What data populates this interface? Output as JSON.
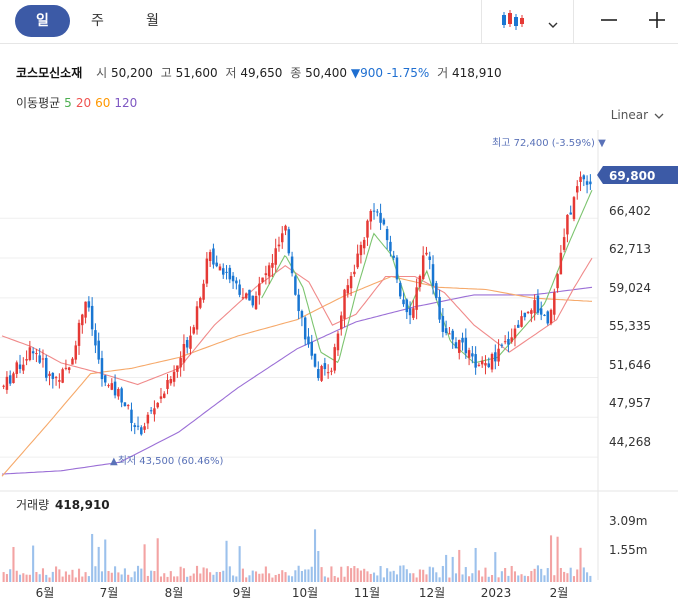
{
  "toolbar": {
    "tabs": [
      {
        "label": "일",
        "active": true
      },
      {
        "label": "주",
        "active": false
      },
      {
        "label": "월",
        "active": false
      }
    ],
    "chart_type_icon": "candlestick-icon",
    "dropdown_icon": "chevron-down-icon",
    "zoom_out_icon": "minus-icon",
    "zoom_in_icon": "plus-icon"
  },
  "quote": {
    "name": "코스모신소재",
    "open_label": "시",
    "open": "50,200",
    "high_label": "고",
    "high": "51,600",
    "low_label": "저",
    "low": "49,650",
    "close_label": "종",
    "close": "50,400",
    "change": "▼900 -1.75%",
    "volume_label": "거",
    "volume": "418,910"
  },
  "ma_legend": {
    "label": "이동평균",
    "periods": [
      {
        "label": "5",
        "color": "#4caf50"
      },
      {
        "label": "20",
        "color": "#ef5350"
      },
      {
        "label": "60",
        "color": "#ff9800"
      },
      {
        "label": "120",
        "color": "#7e57c2"
      }
    ]
  },
  "scale_mode": "Linear",
  "colors": {
    "up": "#e53935",
    "down": "#1976d2",
    "accent": "#3c5aa6"
  },
  "chart_data": [
    {
      "type": "candlestick",
      "x_tick_labels": [
        "6월",
        "7월",
        "8월",
        "9월",
        "10월",
        "11월",
        "12월",
        "2023",
        "2월"
      ],
      "y_tick_labels": [
        "66,402",
        "62,713",
        "59,024",
        "55,335",
        "51,646",
        "47,957",
        "44,268"
      ],
      "ylim": [
        41500,
        75500
      ],
      "current_price_label": "69,800",
      "max_annotation": "최고 72,400 (-3.59%) ▼",
      "min_annotation": "▲최저 43,500 (60.46%)",
      "grid": true,
      "series_anchors": [
        {
          "name": "price",
          "points": [
            [
              0,
              50800
            ],
            [
              0.05,
              54500
            ],
            [
              0.08,
              51500
            ],
            [
              0.11,
              52200
            ],
            [
              0.14,
              59000
            ],
            [
              0.17,
              51000
            ],
            [
              0.2,
              50000
            ],
            [
              0.23,
              46500
            ],
            [
              0.26,
              49200
            ],
            [
              0.29,
              52000
            ],
            [
              0.32,
              56000
            ],
            [
              0.35,
              63000
            ],
            [
              0.38,
              61500
            ],
            [
              0.42,
              58500
            ],
            [
              0.45,
              61500
            ],
            [
              0.48,
              65200
            ],
            [
              0.5,
              59000
            ],
            [
              0.53,
              52000
            ],
            [
              0.56,
              52800
            ],
            [
              0.58,
              59000
            ],
            [
              0.61,
              64000
            ],
            [
              0.63,
              67800
            ],
            [
              0.66,
              63500
            ],
            [
              0.69,
              56500
            ],
            [
              0.72,
              64000
            ],
            [
              0.75,
              55500
            ],
            [
              0.78,
              54500
            ],
            [
              0.81,
              52500
            ],
            [
              0.84,
              53500
            ],
            [
              0.87,
              56000
            ],
            [
              0.9,
              58500
            ],
            [
              0.93,
              57000
            ],
            [
              0.96,
              66000
            ],
            [
              0.985,
              70500
            ],
            [
              1.0,
              69800
            ]
          ]
        },
        {
          "name": "ma120",
          "points": [
            [
              0,
              42700
            ],
            [
              0.1,
              43000
            ],
            [
              0.2,
              43800
            ],
            [
              0.3,
              46600
            ],
            [
              0.4,
              50700
            ],
            [
              0.5,
              54300
            ],
            [
              0.6,
              56800
            ],
            [
              0.7,
              58200
            ],
            [
              0.8,
              59300
            ],
            [
              0.9,
              59300
            ],
            [
              1.0,
              60000
            ]
          ]
        },
        {
          "name": "ma60",
          "points": [
            [
              0,
              42500
            ],
            [
              0.08,
              47500
            ],
            [
              0.15,
              52000
            ],
            [
              0.22,
              52500
            ],
            [
              0.3,
              53500
            ],
            [
              0.4,
              55500
            ],
            [
              0.5,
              57000
            ],
            [
              0.58,
              59200
            ],
            [
              0.66,
              61000
            ],
            [
              0.74,
              60000
            ],
            [
              0.82,
              59800
            ],
            [
              0.9,
              59000
            ],
            [
              1.0,
              58700
            ]
          ]
        },
        {
          "name": "ma20",
          "points": [
            [
              0,
              55500
            ],
            [
              0.05,
              54500
            ],
            [
              0.1,
              53000
            ],
            [
              0.17,
              52000
            ],
            [
              0.23,
              51000
            ],
            [
              0.3,
              52500
            ],
            [
              0.36,
              56500
            ],
            [
              0.43,
              60000
            ],
            [
              0.48,
              62000
            ],
            [
              0.52,
              60500
            ],
            [
              0.56,
              56500
            ],
            [
              0.6,
              57500
            ],
            [
              0.65,
              61000
            ],
            [
              0.7,
              61000
            ],
            [
              0.75,
              59500
            ],
            [
              0.8,
              56500
            ],
            [
              0.86,
              54000
            ],
            [
              0.9,
              55500
            ],
            [
              0.94,
              57000
            ],
            [
              0.97,
              60000
            ],
            [
              1.0,
              62700
            ]
          ]
        },
        {
          "name": "ma5",
          "points": [
            [
              0.44,
              59000
            ],
            [
              0.48,
              63000
            ],
            [
              0.51,
              60000
            ],
            [
              0.54,
              54000
            ],
            [
              0.57,
              53000
            ],
            [
              0.6,
              59500
            ],
            [
              0.63,
              65000
            ],
            [
              0.66,
              63000
            ],
            [
              0.69,
              58000
            ],
            [
              0.72,
              61500
            ],
            [
              0.76,
              55000
            ],
            [
              0.8,
              53000
            ],
            [
              0.84,
              53500
            ],
            [
              0.88,
              56000
            ],
            [
              0.92,
              58500
            ],
            [
              0.96,
              64000
            ],
            [
              1.0,
              69000
            ]
          ]
        }
      ]
    },
    {
      "type": "bar",
      "title": "거래량",
      "title_value": "418,910",
      "y_tick_labels": [
        "3.09m",
        "1.55m"
      ],
      "ylim": [
        0,
        3500000
      ]
    }
  ]
}
